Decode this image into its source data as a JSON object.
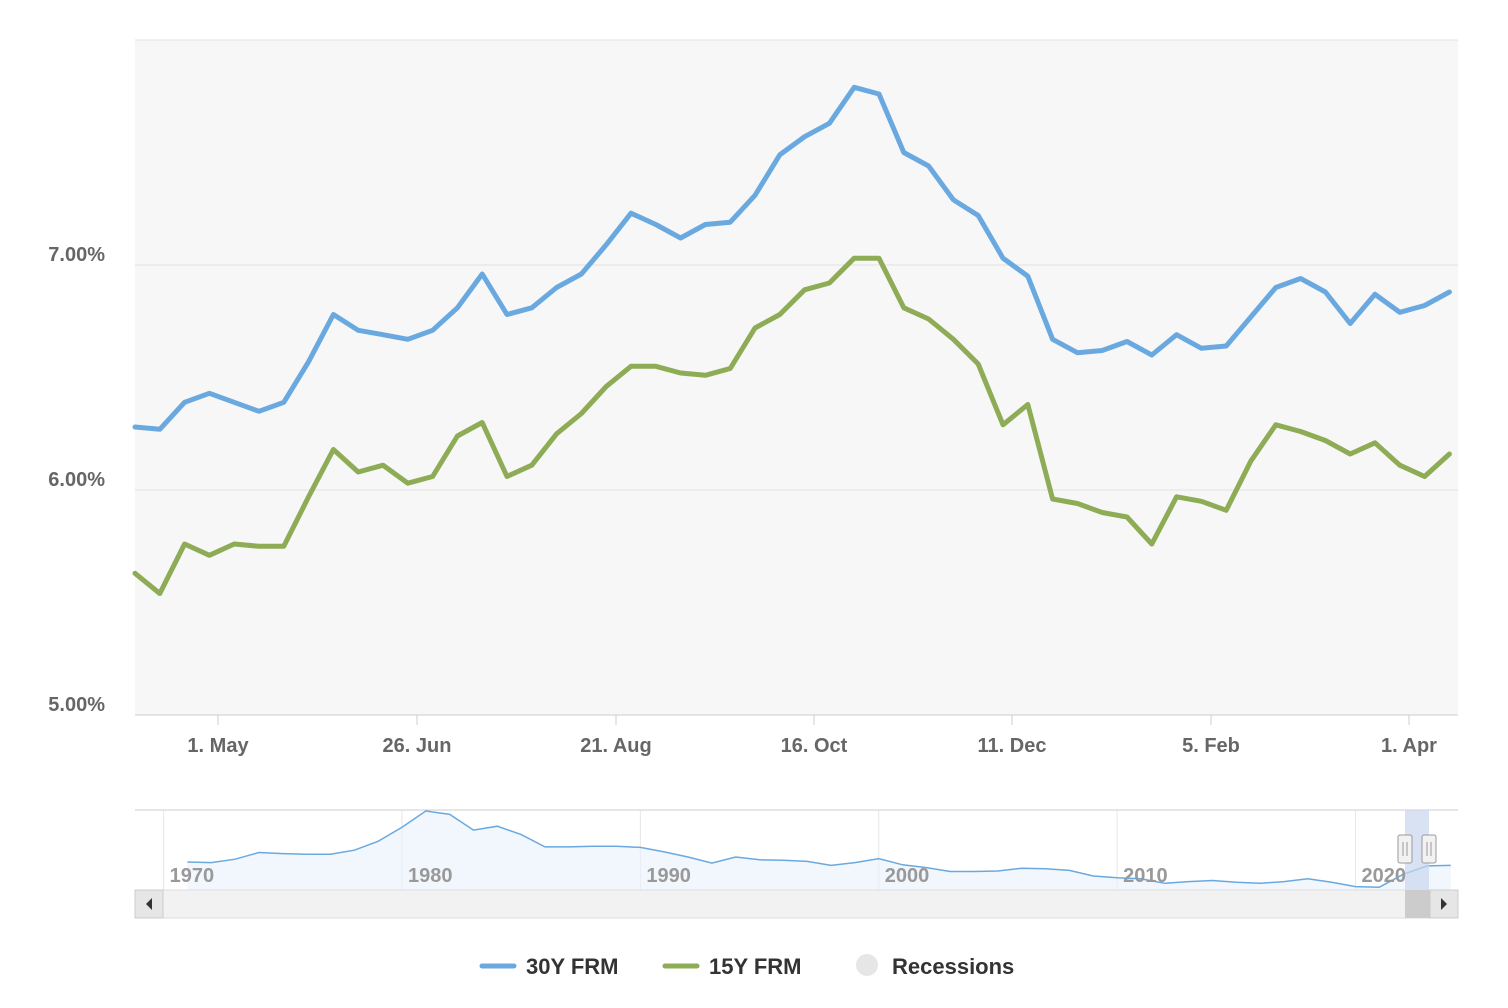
{
  "chart_data": {
    "type": "line",
    "y_tick_labels": [
      "5.00%",
      "6.00%",
      "7.00%"
    ],
    "y_ticks": [
      5.0,
      6.0,
      7.0
    ],
    "ylim": [
      5.0,
      8.0
    ],
    "x_tick_labels": [
      "1. May",
      "26. Jun",
      "21. Aug",
      "16. Oct",
      "11. Dec",
      "5. Feb",
      "1. Apr"
    ],
    "grid": true,
    "colors": {
      "30Y FRM": "#6aa9e0",
      "15Y FRM": "#8dac55",
      "Recessions": "#e6e6e6"
    },
    "series": [
      {
        "name": "30Y FRM",
        "values": [
          6.28,
          6.27,
          6.39,
          6.43,
          6.39,
          6.35,
          6.39,
          6.57,
          6.78,
          6.71,
          6.69,
          6.67,
          6.71,
          6.81,
          6.96,
          6.78,
          6.81,
          6.9,
          6.96,
          7.09,
          7.23,
          7.18,
          7.12,
          7.18,
          7.19,
          7.31,
          7.49,
          7.57,
          7.63,
          7.79,
          7.76,
          7.5,
          7.44,
          7.29,
          7.22,
          7.03,
          6.95,
          6.67,
          6.61,
          6.62,
          6.66,
          6.6,
          6.69,
          6.63,
          6.64,
          6.77,
          6.9,
          6.94,
          6.88,
          6.74,
          6.87,
          6.79,
          6.82,
          6.88
        ]
      },
      {
        "name": "15Y FRM",
        "values": [
          5.63,
          5.54,
          5.76,
          5.71,
          5.76,
          5.75,
          5.75,
          5.97,
          6.18,
          6.08,
          6.11,
          6.03,
          6.06,
          6.24,
          6.3,
          6.06,
          6.11,
          6.25,
          6.34,
          6.46,
          6.55,
          6.55,
          6.52,
          6.51,
          6.54,
          6.72,
          6.78,
          6.89,
          6.92,
          7.03,
          7.03,
          6.81,
          6.76,
          6.67,
          6.56,
          6.29,
          6.38,
          5.96,
          5.94,
          5.9,
          5.88,
          5.76,
          5.97,
          5.95,
          5.91,
          6.13,
          6.29,
          6.26,
          6.22,
          6.16,
          6.21,
          6.11,
          6.06,
          6.16
        ]
      }
    ],
    "navigator": {
      "x_labels": [
        "1970",
        "1980",
        "1990",
        "2000",
        "2010",
        "2020"
      ],
      "x_years": [
        1970,
        1980,
        1990,
        2000,
        2010,
        2020
      ],
      "xlim": [
        1968.8,
        2024.3
      ],
      "years": [
        1971,
        1972,
        1973,
        1974,
        1975,
        1976,
        1977,
        1978,
        1979,
        1980,
        1981,
        1982,
        1983,
        1984,
        1985,
        1986,
        1987,
        1988,
        1989,
        1990,
        1991,
        1992,
        1993,
        1994,
        1995,
        1996,
        1997,
        1998,
        1999,
        2000,
        2001,
        2002,
        2003,
        2004,
        2005,
        2006,
        2007,
        2008,
        2009,
        2010,
        2011,
        2012,
        2013,
        2014,
        2015,
        2016,
        2017,
        2018,
        2019,
        2020,
        2021,
        2022,
        2023,
        2024
      ],
      "values": [
        7.5,
        7.4,
        8.0,
        9.2,
        9.0,
        8.9,
        8.9,
        9.6,
        11.2,
        13.7,
        16.6,
        16.0,
        13.2,
        13.9,
        12.4,
        10.2,
        10.2,
        10.3,
        10.3,
        10.1,
        9.3,
        8.4,
        7.3,
        8.4,
        7.9,
        7.8,
        7.6,
        6.9,
        7.4,
        8.1,
        7.0,
        6.5,
        5.8,
        5.8,
        5.9,
        6.4,
        6.3,
        6.0,
        5.0,
        4.7,
        4.5,
        3.7,
        4.0,
        4.2,
        3.9,
        3.7,
        4.0,
        4.5,
        3.9,
        3.1,
        3.0,
        5.3,
        6.8,
        6.9
      ]
    },
    "legend": [
      "30Y FRM",
      "15Y FRM",
      "Recessions"
    ],
    "legend_position": "bottom-center"
  }
}
